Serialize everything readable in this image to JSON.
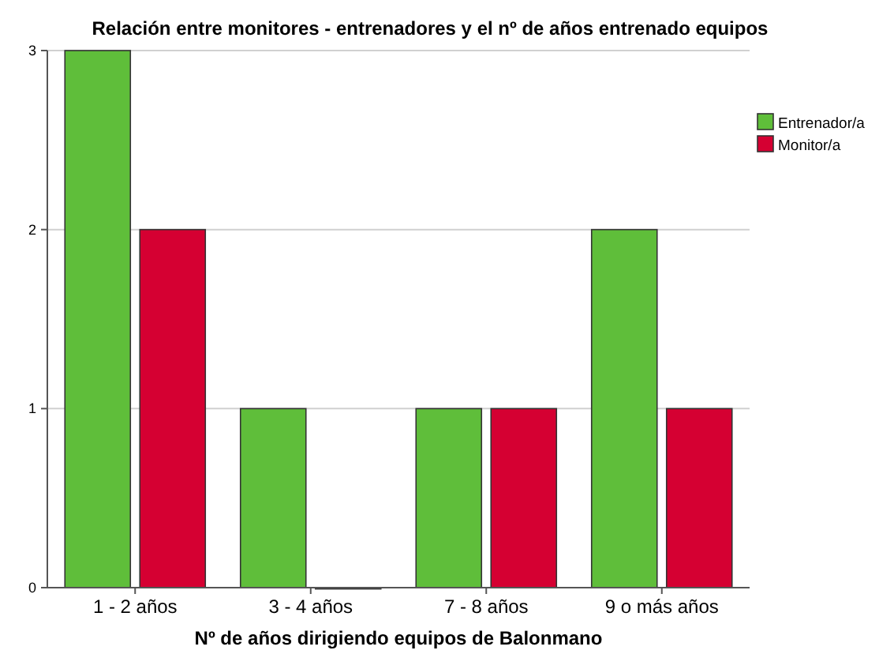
{
  "chart_data": {
    "type": "bar",
    "title": "Relación entre monitores - entrenadores y el nº de años entrenado equipos",
    "xlabel": "Nº de años dirigiendo equipos de Balonmano",
    "categories": [
      "1 - 2 años",
      "3 - 4 años",
      "7 - 8 años",
      "9 o más años"
    ],
    "series": [
      {
        "name": "Entrenador/a",
        "color": "#5fbe3a",
        "values": [
          3,
          1,
          1,
          2
        ]
      },
      {
        "name": "Monitor/a",
        "color": "#d50032",
        "values": [
          2,
          0,
          1,
          1
        ]
      }
    ],
    "ylim": [
      0,
      3
    ],
    "yticks": [
      0,
      1,
      2,
      3
    ],
    "grid": "y",
    "legend": "top right"
  }
}
